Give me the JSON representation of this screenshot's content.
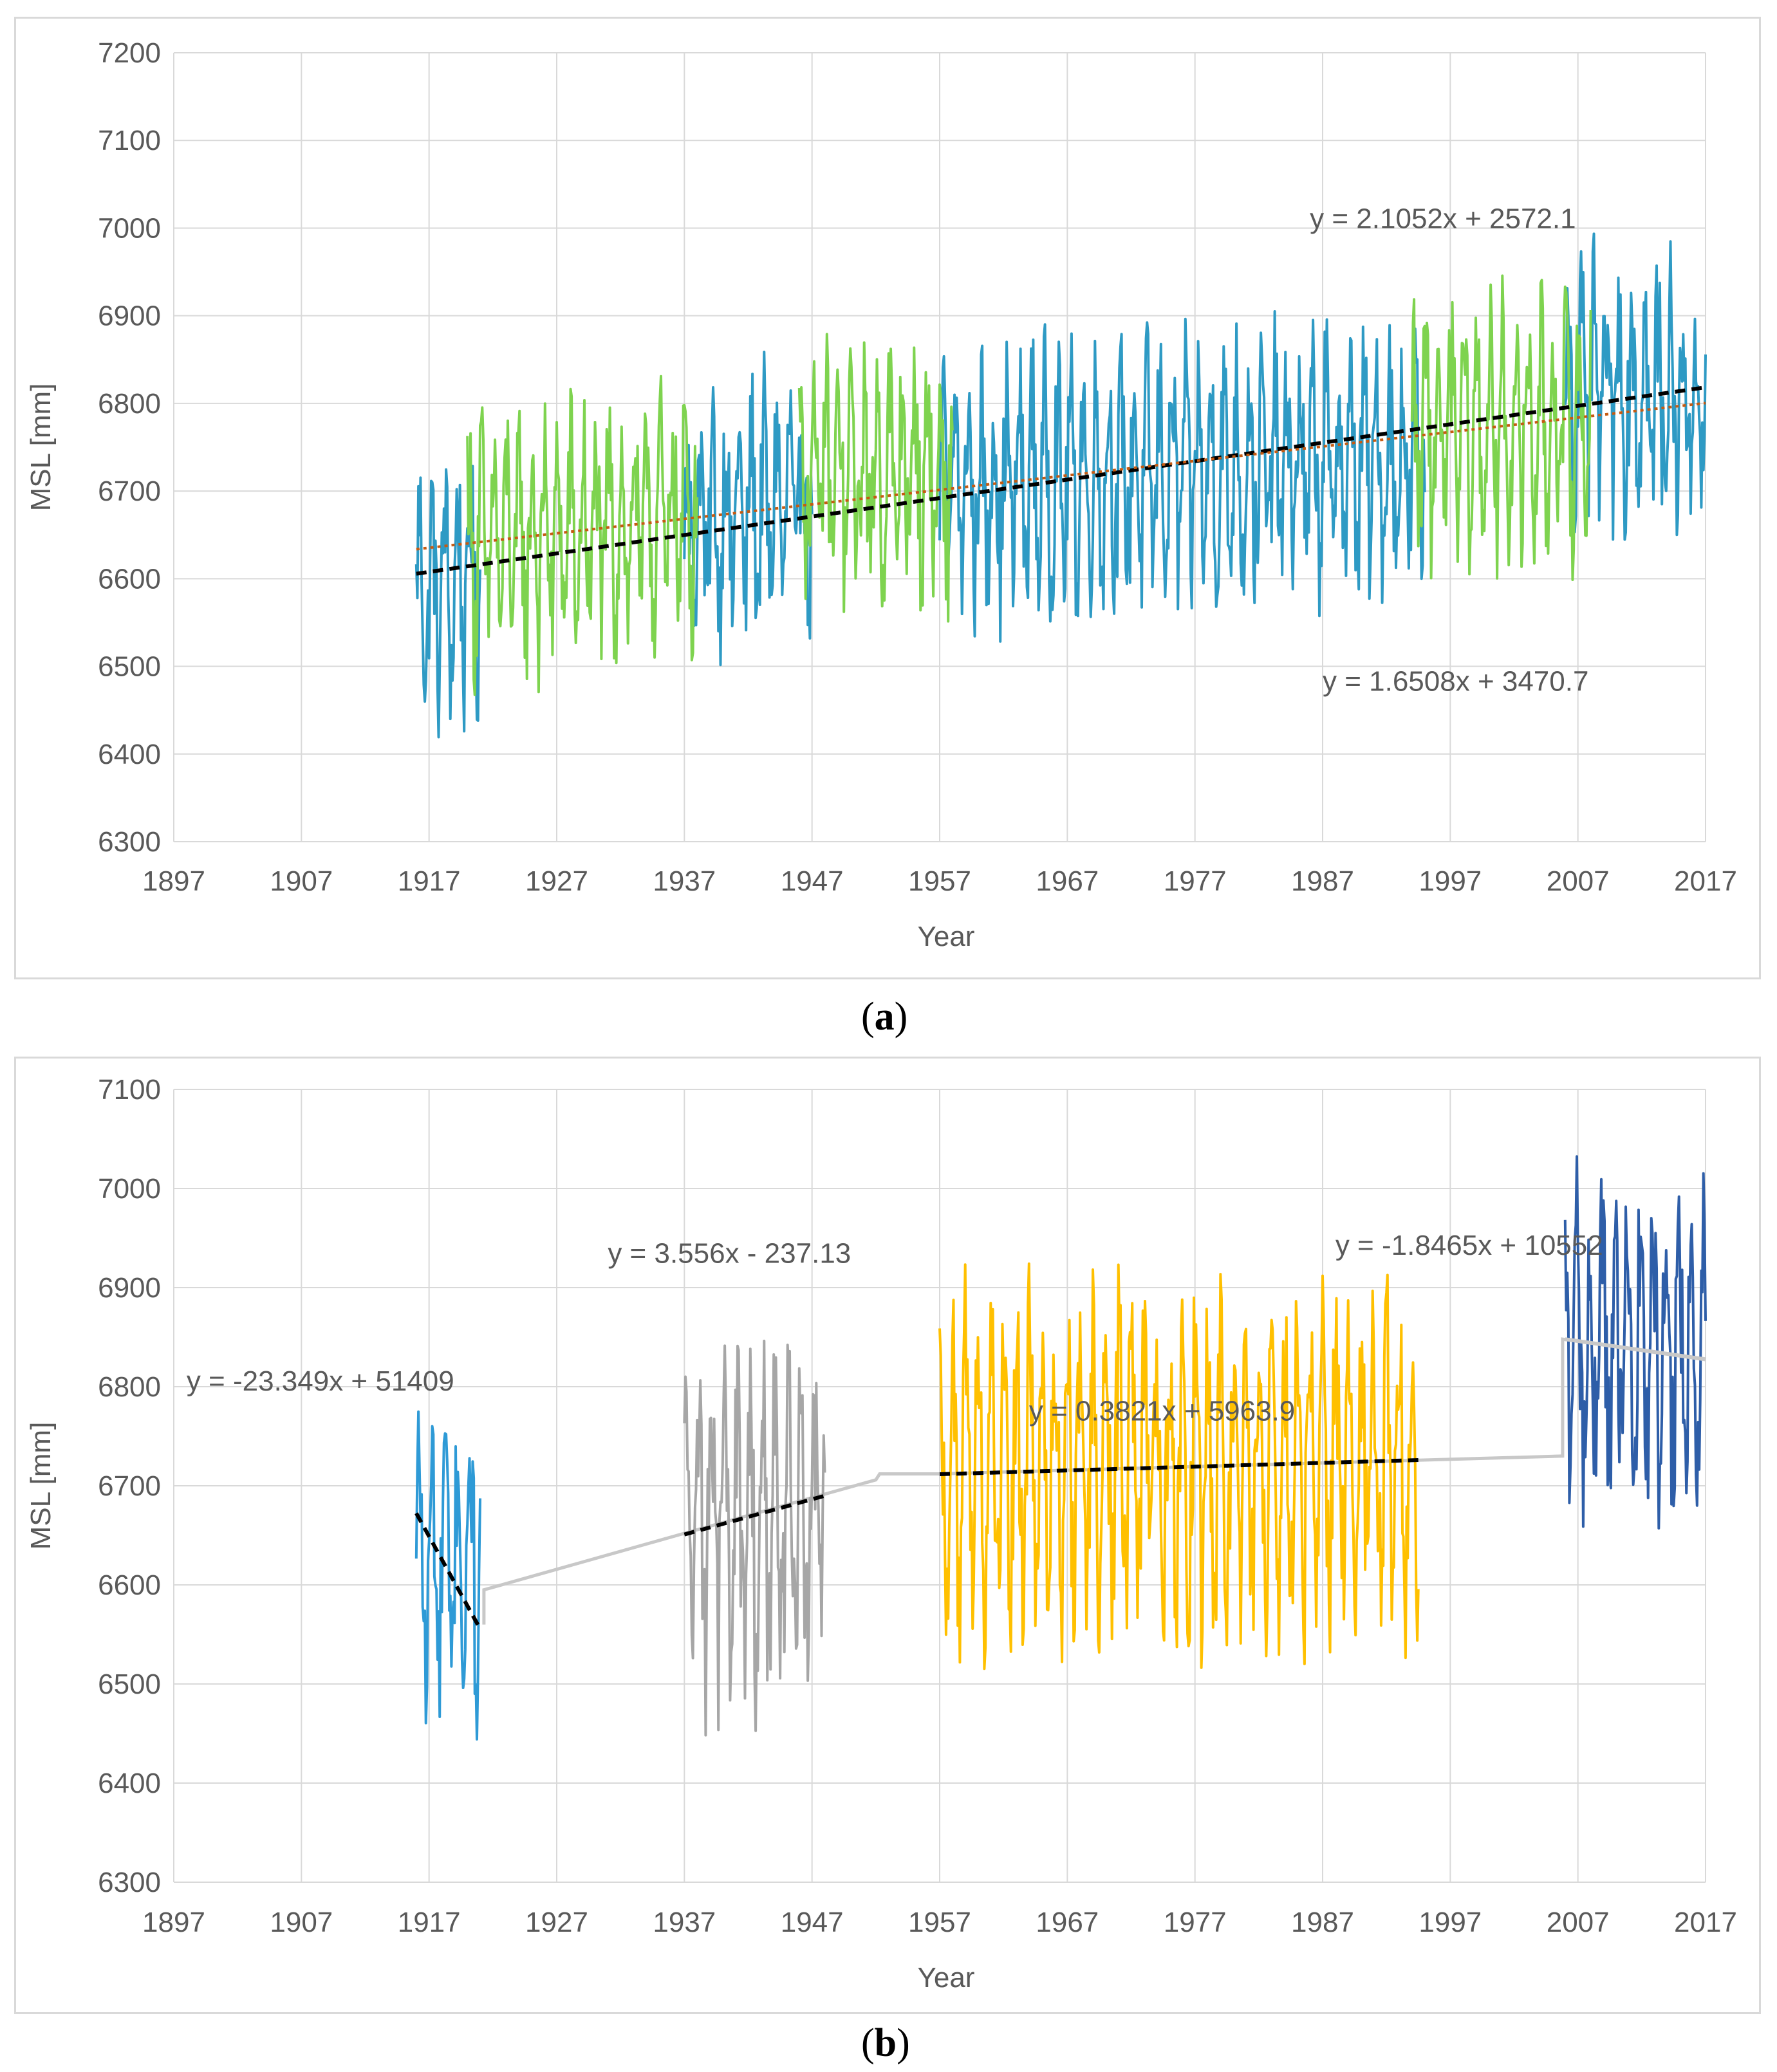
{
  "chart_data": [
    {
      "id": "a",
      "panel_label": "a",
      "type": "line",
      "xlabel": "Year",
      "ylabel": "MSL [mm]",
      "xlim": [
        1897,
        2017
      ],
      "ylim": [
        6300,
        7200
      ],
      "xticks": [
        1897,
        1907,
        1917,
        1927,
        1937,
        1947,
        1957,
        1967,
        1977,
        1987,
        1997,
        2007,
        2017
      ],
      "yticks": [
        6300,
        6400,
        6500,
        6600,
        6700,
        6800,
        6900,
        7000,
        7100,
        7200
      ],
      "grid": true,
      "series": [
        {
          "name": "MSL (blue segments)",
          "color": "#2e9ac4",
          "segments": [
            [
              1916,
              1921
            ],
            [
              1937,
              1947
            ],
            [
              1957,
              1995
            ],
            [
              2006,
              2017
            ]
          ],
          "anchors": [
            [
              1916,
              6580
            ],
            [
              1921,
              6600
            ],
            [
              1937,
              6660
            ],
            [
              1947,
              6690
            ],
            [
              1957,
              6700
            ],
            [
              1967,
              6715
            ],
            [
              1977,
              6720
            ],
            [
              1987,
              6730
            ],
            [
              1995,
              6735
            ],
            [
              2006,
              6820
            ],
            [
              2017,
              6800
            ]
          ]
        },
        {
          "name": "MSL (green segments)",
          "color": "#7ed34f",
          "segments": [
            [
              1920,
              1938
            ],
            [
              1946,
              1958
            ],
            [
              1994,
              2008
            ]
          ],
          "anchors": [
            [
              1920,
              6640
            ],
            [
              1930,
              6650
            ],
            [
              1938,
              6680
            ],
            [
              1946,
              6720
            ],
            [
              1958,
              6720
            ],
            [
              1994,
              6760
            ],
            [
              2008,
              6780
            ]
          ]
        }
      ],
      "trendlines": [
        {
          "equation": "y = 2.1052x + 2572.1",
          "slope": 2.1052,
          "intercept": 2572.1,
          "x_range": [
            1916,
            2017
          ],
          "color": "#000000",
          "style": "dashed"
        },
        {
          "equation": "y = 1.6508x + 3470.7",
          "slope": 1.6508,
          "intercept": 3470.7,
          "x_range": [
            1916,
            2017
          ],
          "color": "#c55a11",
          "style": "dotted"
        }
      ],
      "annotations": [
        {
          "text": "y = 2.1052x + 2572.1",
          "x": 1986,
          "y": 7000
        },
        {
          "text": "y = 1.6508x + 3470.7",
          "x": 1987,
          "y": 6472
        }
      ]
    },
    {
      "id": "b",
      "panel_label": "b",
      "type": "line",
      "xlabel": "Year",
      "ylabel": "MSL [mm]",
      "xlim": [
        1897,
        2017
      ],
      "ylim": [
        6300,
        7100
      ],
      "xticks": [
        1897,
        1907,
        1917,
        1927,
        1937,
        1947,
        1957,
        1967,
        1977,
        1987,
        1997,
        2007,
        2017
      ],
      "yticks": [
        6300,
        6400,
        6500,
        6600,
        6700,
        6800,
        6900,
        7000,
        7100
      ],
      "grid": true,
      "series": [
        {
          "name": "1916-1921",
          "color": "#2e9ad6",
          "x_range": [
            1916,
            1921
          ],
          "mean": 6620,
          "amp": 110
        },
        {
          "name": "1937-1948",
          "color": "#a6a6a6",
          "x_range": [
            1937,
            1948
          ],
          "mean": 6665,
          "amp": 125
        },
        {
          "name": "1957-1994",
          "color": "#ffc000",
          "x_range": [
            1957,
            1994.5
          ],
          "mean": 6720,
          "amp": 115
        },
        {
          "name": "2006-2017",
          "color": "#2e5ea8",
          "x_range": [
            2006,
            2017
          ],
          "mean": 6840,
          "amp": 110
        }
      ],
      "connector": {
        "color": "#c8c8c8",
        "points": [
          [
            1921.3,
            6560
          ],
          [
            1921.3,
            6595
          ],
          [
            1937,
            6652
          ],
          [
            1952,
            6706
          ],
          [
            1952.3,
            6712
          ],
          [
            1957,
            6712
          ],
          [
            2005.8,
            6730
          ],
          [
            2005.8,
            6848
          ],
          [
            2017,
            6828
          ]
        ]
      },
      "trendlines": [
        {
          "equation": "y = -23.349x + 51409",
          "slope": -23.349,
          "intercept": 51409,
          "x_range": [
            1916,
            1921
          ],
          "color": "#000000",
          "style": "dashed"
        },
        {
          "equation": "y = 3.556x - 237.13",
          "slope": 3.556,
          "intercept": -237.13,
          "x_range": [
            1937,
            1948
          ],
          "color": "#000000",
          "style": "dashed"
        },
        {
          "equation": "y = 0.3821x + 5963.9",
          "slope": 0.3821,
          "intercept": 5963.9,
          "x_range": [
            1957,
            1994.5
          ],
          "color": "#000000",
          "style": "dashed"
        },
        {
          "equation": "y = -1.8465x + 10552",
          "slope": -1.8465,
          "intercept": 10552,
          "x_range": [
            2006,
            2017
          ],
          "color": "#c8c8c8",
          "style": "solid"
        }
      ],
      "annotations": [
        {
          "text": "y = -23.349x + 51409",
          "x": 1898,
          "y": 6796
        },
        {
          "text": "y = 3.556x - 237.13",
          "x": 1931,
          "y": 6925
        },
        {
          "text": "y = 0.3821x + 5963.9",
          "x": 1964,
          "y": 6766
        },
        {
          "text": "y = -1.8465x + 10552",
          "x": 1988,
          "y": 6933
        }
      ]
    }
  ]
}
